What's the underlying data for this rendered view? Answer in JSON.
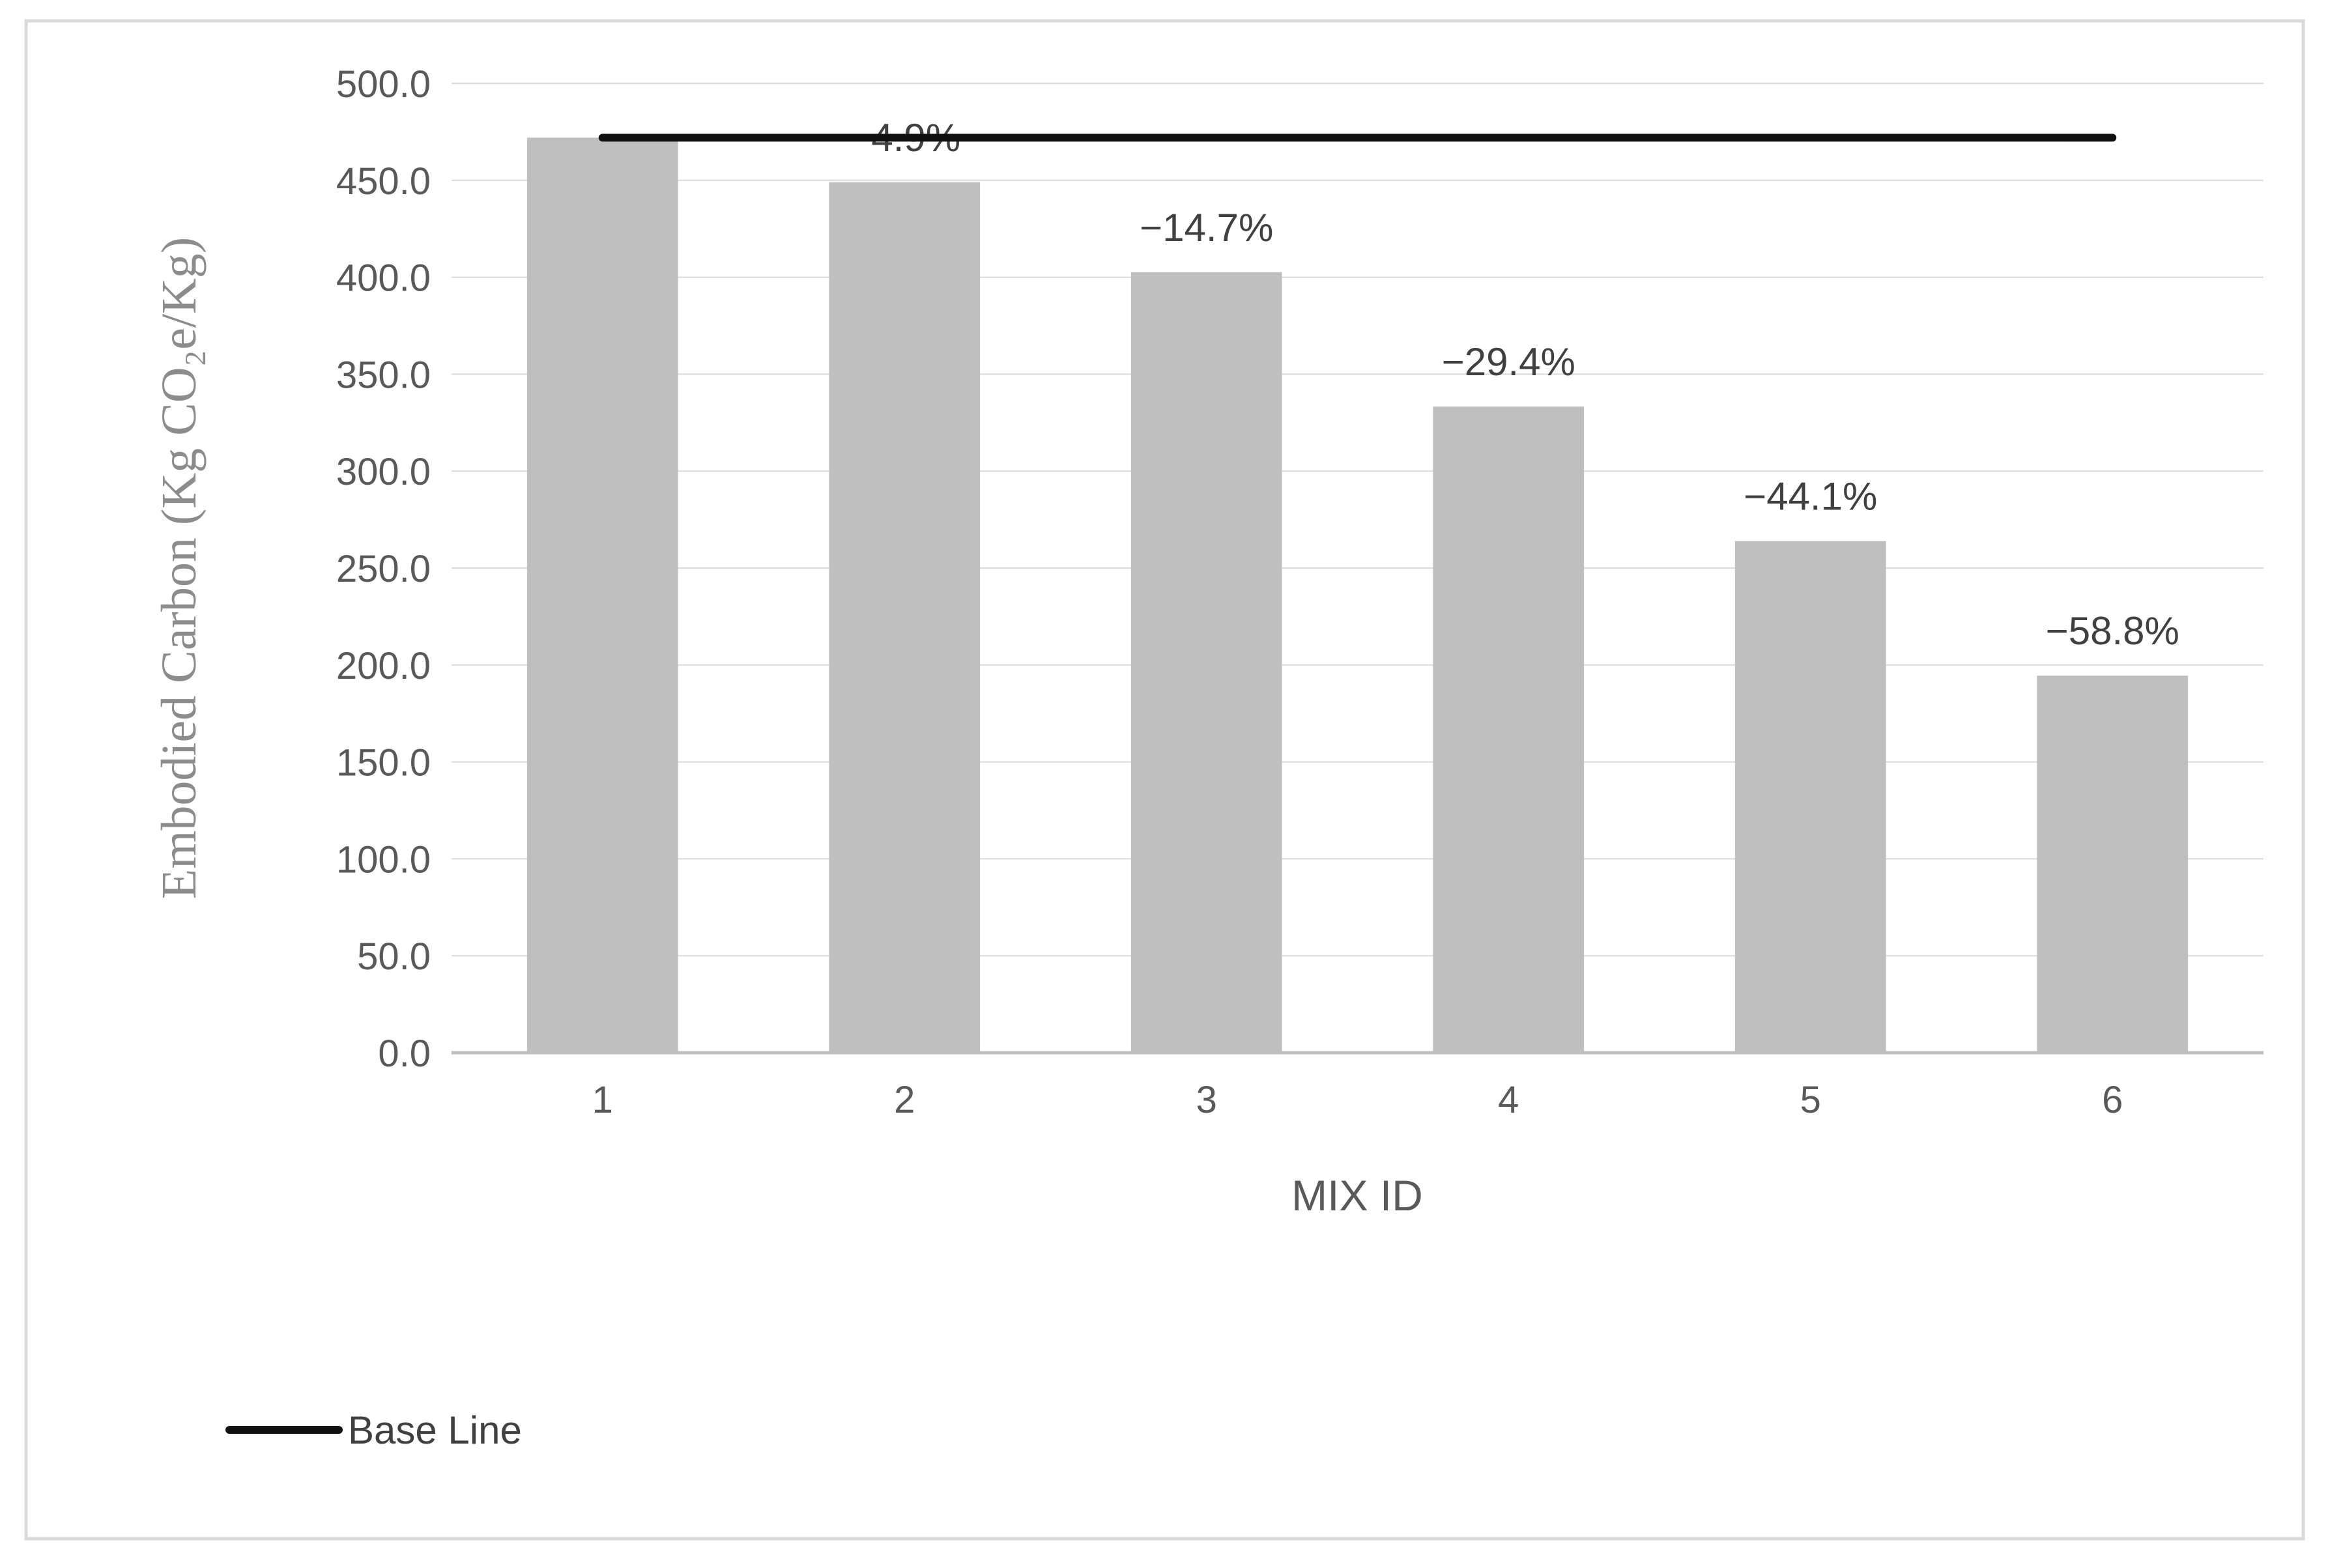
{
  "chart_data": {
    "type": "bar",
    "categories": [
      "1",
      "2",
      "3",
      "4",
      "5",
      "6"
    ],
    "series": [
      {
        "values": [
          472.0,
          449.0,
          402.6,
          333.3,
          263.9,
          194.5
        ],
        "color": "#bfbfbf",
        "data_labels": [
          "",
          "−4.9%",
          "−14.7%",
          "−29.4%",
          "−44.1%",
          "−58.8%"
        ]
      }
    ],
    "baseline": {
      "name": "Base Line",
      "value": 472.0,
      "color": "#111111"
    },
    "xlabel": "MIX ID",
    "ylabel": "Embodied Carbon (Kg CO₂e/Kg)",
    "ylim": [
      0,
      500
    ],
    "yticks": [
      "0.0",
      "50.0",
      "100.0",
      "150.0",
      "200.0",
      "250.0",
      "300.0",
      "350.0",
      "400.0",
      "450.0",
      "500.0"
    ],
    "grid": true,
    "legend": "bottom-left"
  }
}
